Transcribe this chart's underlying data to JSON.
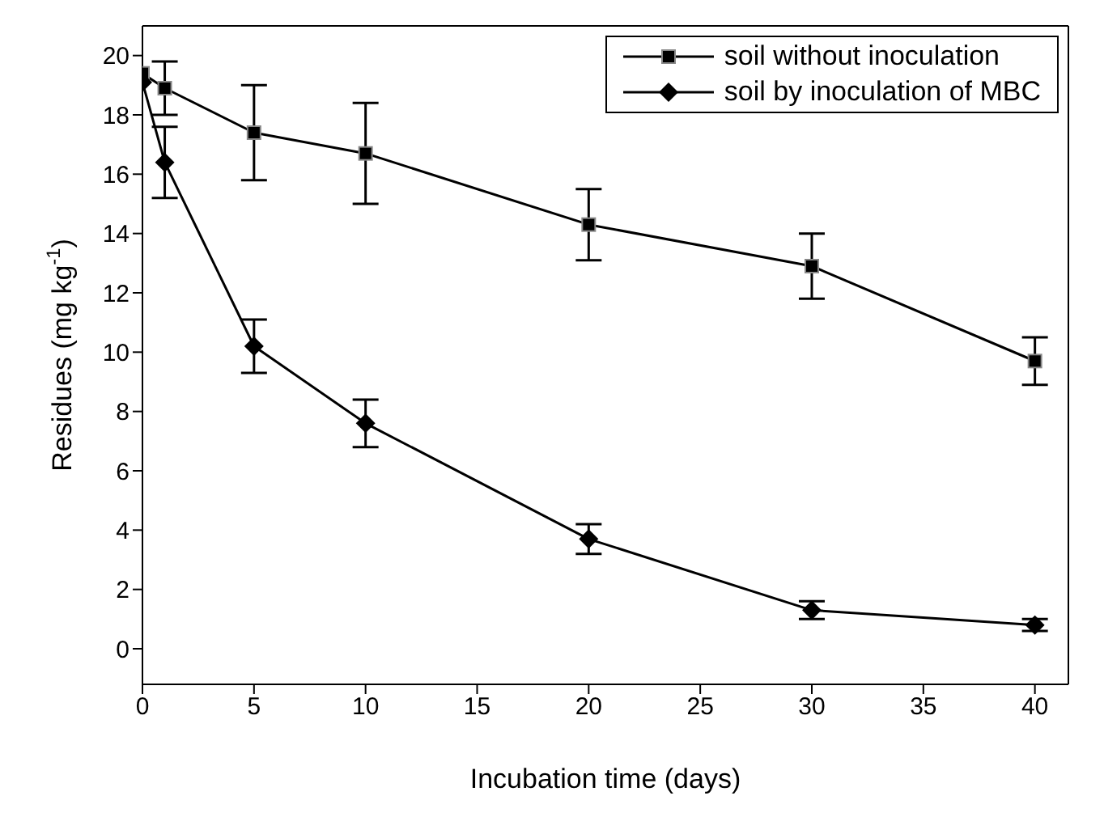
{
  "chart_data": {
    "type": "line",
    "xlabel": "Incubation time (days)",
    "ylabel": "Residues (mg kg$^{-1}$)",
    "x": [
      0,
      1,
      5,
      10,
      20,
      30,
      40
    ],
    "series": [
      {
        "name": "soil without inoculation",
        "color": "#000000",
        "marker": "square",
        "values": [
          19.4,
          18.9,
          17.4,
          16.7,
          14.3,
          12.9,
          9.7
        ],
        "errors": [
          null,
          0.9,
          1.6,
          1.7,
          1.2,
          1.1,
          0.8
        ]
      },
      {
        "name": "soil by inoculation of MBC",
        "color": "#000000",
        "marker": "diamond",
        "values": [
          19.1,
          16.4,
          10.2,
          7.6,
          3.7,
          1.3,
          0.8
        ],
        "errors": [
          null,
          1.2,
          0.9,
          0.8,
          0.5,
          0.3,
          0.2
        ]
      }
    ],
    "xlim": [
      0,
      41.5
    ],
    "xticks": [
      0,
      5,
      10,
      15,
      20,
      25,
      30,
      35,
      40
    ],
    "ylim": [
      -1.2,
      21
    ],
    "yticks": [
      0,
      2,
      4,
      6,
      8,
      10,
      12,
      14,
      16,
      18,
      20
    ],
    "legend": "top right",
    "grid": false,
    "line_style": "solid"
  }
}
